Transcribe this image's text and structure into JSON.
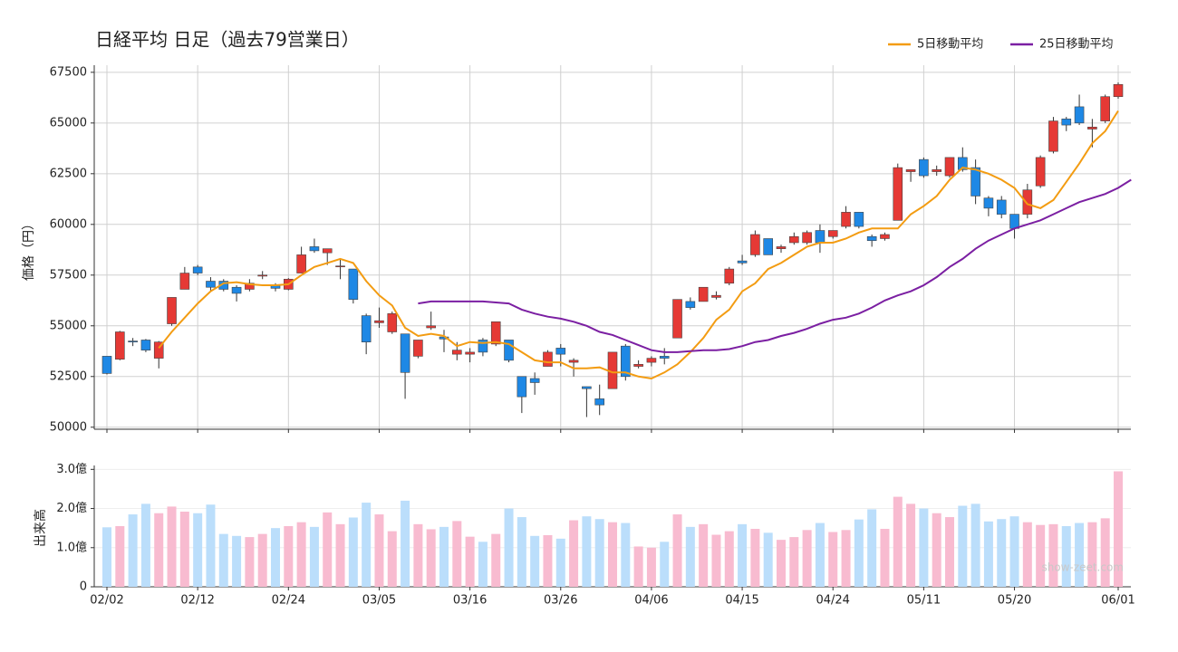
{
  "chart_data": [
    {
      "type": "candlestick",
      "title": "日経平均 日足（過去79営業日）",
      "ylabel": "価格（円）",
      "open": [
        53500,
        53350,
        54250,
        54300,
        53400,
        55100,
        56800,
        57900,
        57200,
        57200,
        56900,
        56800,
        57450,
        57000,
        56800,
        57600,
        58900,
        58600,
        57950,
        57800,
        55500,
        55150,
        54700,
        54600,
        53500,
        54900,
        54450,
        53600,
        53600,
        54300,
        54100,
        54300,
        52500,
        52400,
        53000,
        53900,
        53200,
        52000,
        51400,
        51900,
        54000,
        53000,
        53200,
        53500,
        54400,
        56200,
        56200,
        56400,
        57100,
        58200,
        58500,
        59300,
        58800,
        59100,
        59100,
        59700,
        59400,
        59900,
        60600,
        59400,
        59300,
        60200,
        62600,
        63200,
        62600,
        62400,
        63300,
        62800,
        61300,
        61200,
        60500,
        60500,
        61900,
        63600,
        65200,
        65800,
        64700,
        65100,
        66300
      ],
      "high": [
        53500,
        54750,
        54400,
        54350,
        54250,
        56400,
        57900,
        58000,
        57400,
        57300,
        57000,
        57300,
        57700,
        57100,
        57350,
        58900,
        59300,
        58800,
        58300,
        57800,
        55600,
        55900,
        55700,
        54600,
        54300,
        55700,
        54800,
        54200,
        53900,
        54400,
        55200,
        54300,
        52500,
        52700,
        53800,
        54100,
        53400,
        52000,
        52100,
        53700,
        54100,
        53300,
        53500,
        53900,
        56300,
        56400,
        56900,
        56700,
        57900,
        58500,
        59700,
        59300,
        59000,
        59600,
        59700,
        60000,
        59700,
        60900,
        60600,
        59500,
        59600,
        63000,
        62700,
        63300,
        62900,
        63300,
        63800,
        63200,
        61400,
        61400,
        60500,
        62000,
        63400,
        65300,
        65300,
        66400,
        65200,
        66400,
        67000
      ],
      "low": [
        52600,
        53300,
        54000,
        53700,
        52900,
        55000,
        56800,
        57500,
        56700,
        56700,
        56200,
        56700,
        57300,
        56700,
        56750,
        57600,
        58600,
        58000,
        57300,
        56100,
        53600,
        54900,
        54600,
        51400,
        53400,
        54800,
        53700,
        53300,
        53200,
        53500,
        54000,
        53200,
        50700,
        51600,
        53000,
        53000,
        52500,
        50500,
        50600,
        51900,
        52300,
        52900,
        53000,
        53100,
        54400,
        55800,
        56200,
        56300,
        57000,
        58000,
        58400,
        58500,
        58600,
        59000,
        59000,
        58600,
        59300,
        59800,
        59800,
        58900,
        59200,
        60200,
        62100,
        62300,
        62400,
        62300,
        62600,
        61000,
        60400,
        60300,
        59300,
        60300,
        61800,
        63500,
        64600,
        64900,
        63800,
        65000,
        66200
      ],
      "close": [
        52650,
        54700,
        54200,
        53800,
        54200,
        56400,
        57600,
        57600,
        56900,
        56800,
        56600,
        57100,
        57500,
        56850,
        57300,
        58500,
        58700,
        58800,
        57950,
        56300,
        54200,
        55250,
        55600,
        52700,
        54300,
        55000,
        54350,
        53800,
        53700,
        53700,
        55200,
        53300,
        51500,
        52200,
        53700,
        53600,
        53300,
        51900,
        51100,
        53700,
        52500,
        53100,
        53400,
        53400,
        56300,
        55900,
        56900,
        56500,
        57800,
        58100,
        59500,
        58500,
        58900,
        59400,
        59600,
        59100,
        59700,
        60600,
        59900,
        59200,
        59500,
        62800,
        62700,
        62400,
        62700,
        63300,
        62700,
        61400,
        60800,
        60500,
        59800,
        61700,
        63300,
        65100,
        64900,
        65000,
        64800,
        66300,
        66900
      ],
      "up_color": "#e53935",
      "down_color": "#1e88e5",
      "series": [
        {
          "name": "5日移動平均",
          "color": "#f39c12",
          "values": [
            null,
            null,
            null,
            null,
            53900,
            54700,
            55400,
            56100,
            56700,
            57100,
            57150,
            57050,
            57000,
            57000,
            57050,
            57500,
            57900,
            58100,
            58300,
            58100,
            57200,
            56500,
            56000,
            54900,
            54500,
            54600,
            54500,
            54000,
            54200,
            54150,
            54200,
            54100,
            53700,
            53300,
            53200,
            53200,
            52900,
            52900,
            52950,
            52700,
            52700,
            52500,
            52400,
            52700,
            53100,
            53700,
            54400,
            55300,
            55800,
            56700,
            57100,
            57800,
            58100,
            58500,
            58900,
            59100,
            59100,
            59300,
            59600,
            59800,
            59800,
            59800,
            60500,
            60900,
            61400,
            62200,
            62800,
            62700,
            62500,
            62200,
            61800,
            61000,
            60800,
            61200,
            62100,
            63000,
            64000,
            64600,
            65600
          ]
        },
        {
          "name": "25日移動平均",
          "color": "#7b1fa2",
          "values": [
            null,
            null,
            null,
            null,
            null,
            null,
            null,
            null,
            null,
            null,
            null,
            null,
            null,
            null,
            null,
            null,
            null,
            null,
            null,
            null,
            null,
            null,
            null,
            null,
            56100,
            56200,
            56200,
            56200,
            56200,
            56200,
            56150,
            56100,
            55800,
            55600,
            55450,
            55350,
            55200,
            55000,
            54700,
            54550,
            54300,
            54050,
            53800,
            53700,
            53700,
            53750,
            53800,
            53800,
            53850,
            54000,
            54200,
            54300,
            54500,
            54650,
            54850,
            55100,
            55300,
            55400,
            55600,
            55900,
            56250,
            56500,
            56700,
            57000,
            57400,
            57900,
            58300,
            58800,
            59200,
            59500,
            59800,
            60000,
            60200,
            60500,
            60800,
            61100,
            61300,
            61500,
            61800,
            62200
          ]
        }
      ],
      "ylim": [
        49900,
        67850
      ],
      "yticks": [
        50000,
        52500,
        55000,
        57500,
        60000,
        62500,
        65000,
        67500
      ],
      "grid": true,
      "legend": "upper right"
    },
    {
      "type": "bar",
      "ylabel": "出来高",
      "categories": [
        "02/02",
        null,
        null,
        null,
        null,
        null,
        null,
        "02/12",
        null,
        null,
        null,
        null,
        null,
        null,
        "02/24",
        null,
        null,
        null,
        null,
        null,
        null,
        "03/05",
        null,
        null,
        null,
        null,
        null,
        null,
        "03/16",
        null,
        null,
        null,
        null,
        null,
        null,
        "03/26",
        null,
        null,
        null,
        null,
        null,
        null,
        "04/06",
        null,
        null,
        null,
        null,
        null,
        null,
        "04/15",
        null,
        null,
        null,
        null,
        null,
        null,
        "04/24",
        null,
        null,
        null,
        null,
        null,
        null,
        "05/11",
        null,
        null,
        null,
        null,
        null,
        null,
        "05/20",
        null,
        null,
        null,
        null,
        null,
        null,
        null,
        "06/01"
      ],
      "values": [
        1.52,
        1.55,
        1.85,
        2.12,
        1.88,
        2.05,
        1.92,
        1.88,
        2.1,
        1.35,
        1.3,
        1.27,
        1.35,
        1.5,
        1.55,
        1.65,
        1.53,
        1.9,
        1.6,
        1.77,
        2.15,
        1.85,
        1.42,
        2.2,
        1.6,
        1.47,
        1.53,
        1.68,
        1.28,
        1.15,
        1.35,
        2.0,
        1.78,
        1.3,
        1.32,
        1.23,
        1.7,
        1.8,
        1.73,
        1.65,
        1.63,
        1.03,
        1.0,
        1.15,
        1.85,
        1.53,
        1.6,
        1.33,
        1.42,
        1.6,
        1.48,
        1.38,
        1.2,
        1.27,
        1.45,
        1.63,
        1.4,
        1.45,
        1.72,
        1.98,
        1.48,
        2.3,
        2.12,
        2.0,
        1.88,
        1.78,
        2.07,
        2.12,
        1.67,
        1.73,
        1.8,
        1.65,
        1.58,
        1.6,
        1.55,
        1.63,
        1.65,
        1.75,
        2.95
      ],
      "up_color": "#f8bbd0",
      "down_color": "#bbdefb",
      "ylim": [
        0,
        3.1
      ],
      "yticks": [
        0,
        {
          "value": 1,
          "label": "1.0億"
        },
        {
          "value": 2,
          "label": "2.0億"
        },
        {
          "value": 3,
          "label": "3.0億"
        }
      ],
      "grid": true,
      "watermark": "show-zeet.com"
    }
  ]
}
